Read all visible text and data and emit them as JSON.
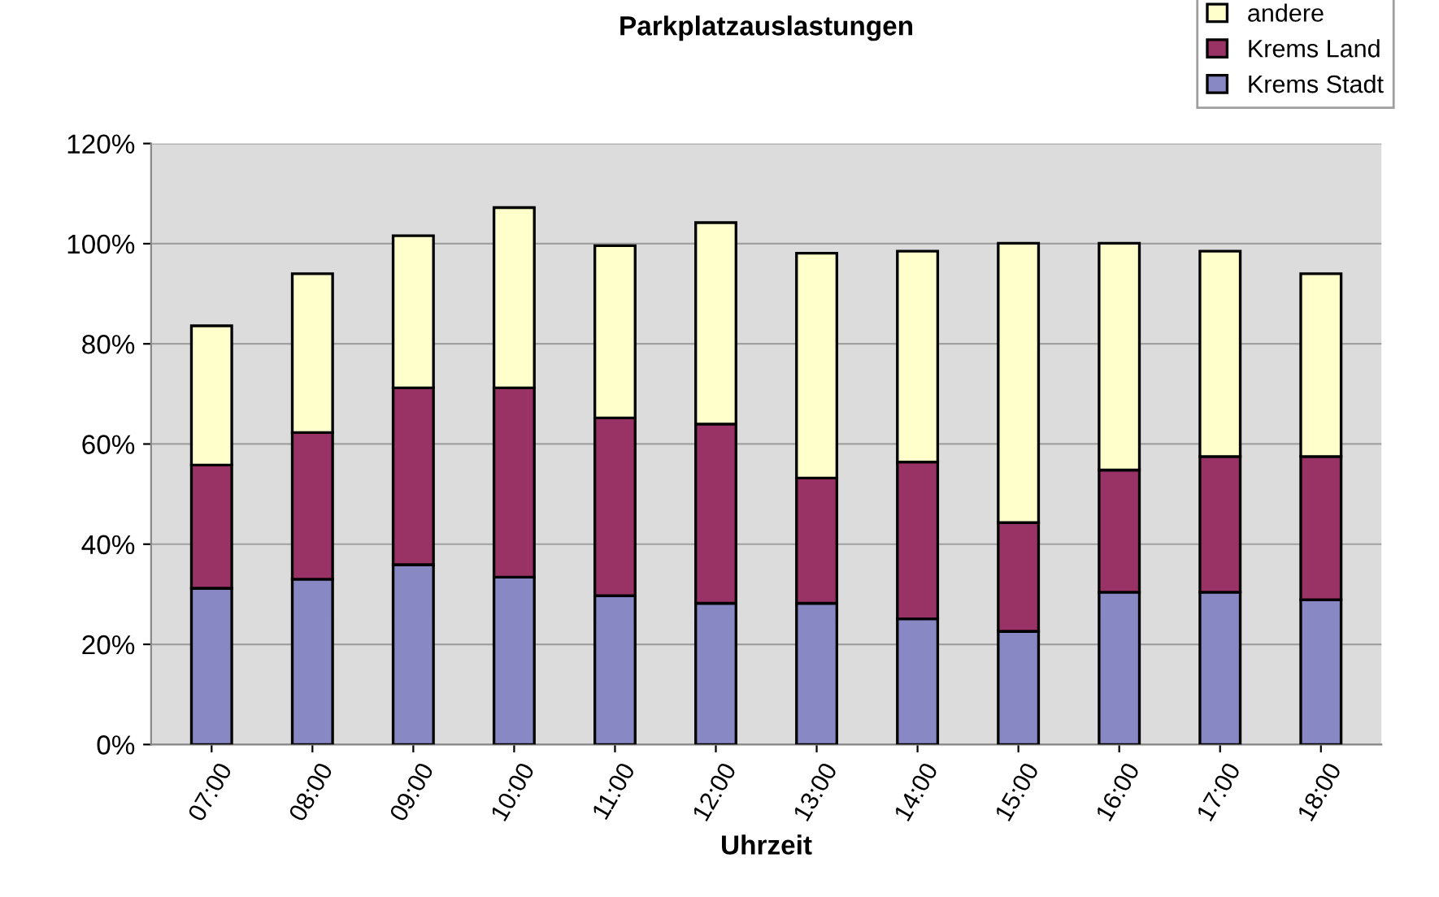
{
  "chart_data": {
    "type": "bar",
    "title": "Parkplatzauslastungen",
    "xlabel": "Uhrzeit",
    "stacked": true,
    "grid": "y",
    "legend": "top right",
    "categories": [
      "07:00",
      "08:00",
      "09:00",
      "10:00",
      "11:00",
      "12:00",
      "13:00",
      "14:00",
      "15:00",
      "16:00",
      "17:00",
      "18:00"
    ],
    "series": [
      {
        "name": "Krems Stadt",
        "color": "#8888c4",
        "values": [
          31.2,
          33.0,
          35.9,
          33.4,
          29.7,
          28.2,
          28.2,
          25.1,
          22.6,
          30.4,
          30.4,
          28.9
        ]
      },
      {
        "name": "Krems Land",
        "color": "#993366",
        "values": [
          24.6,
          29.3,
          35.3,
          37.8,
          35.5,
          35.8,
          25.0,
          31.3,
          21.7,
          24.4,
          27.1,
          28.6
        ]
      },
      {
        "name": "andere",
        "color": "#ffffcc",
        "values": [
          27.8,
          31.7,
          30.4,
          36.0,
          34.4,
          40.2,
          44.9,
          42.1,
          55.8,
          45.3,
          41.0,
          36.5
        ]
      }
    ],
    "ylim": [
      0,
      120
    ],
    "yticks": [
      {
        "value": 0,
        "label": "0%"
      },
      {
        "value": 20,
        "label": "20%"
      },
      {
        "value": 40,
        "label": "40%"
      },
      {
        "value": 60,
        "label": "60%"
      },
      {
        "value": 80,
        "label": "80%"
      },
      {
        "value": 100,
        "label": "100%"
      },
      {
        "value": 120,
        "label": "120%"
      }
    ]
  }
}
